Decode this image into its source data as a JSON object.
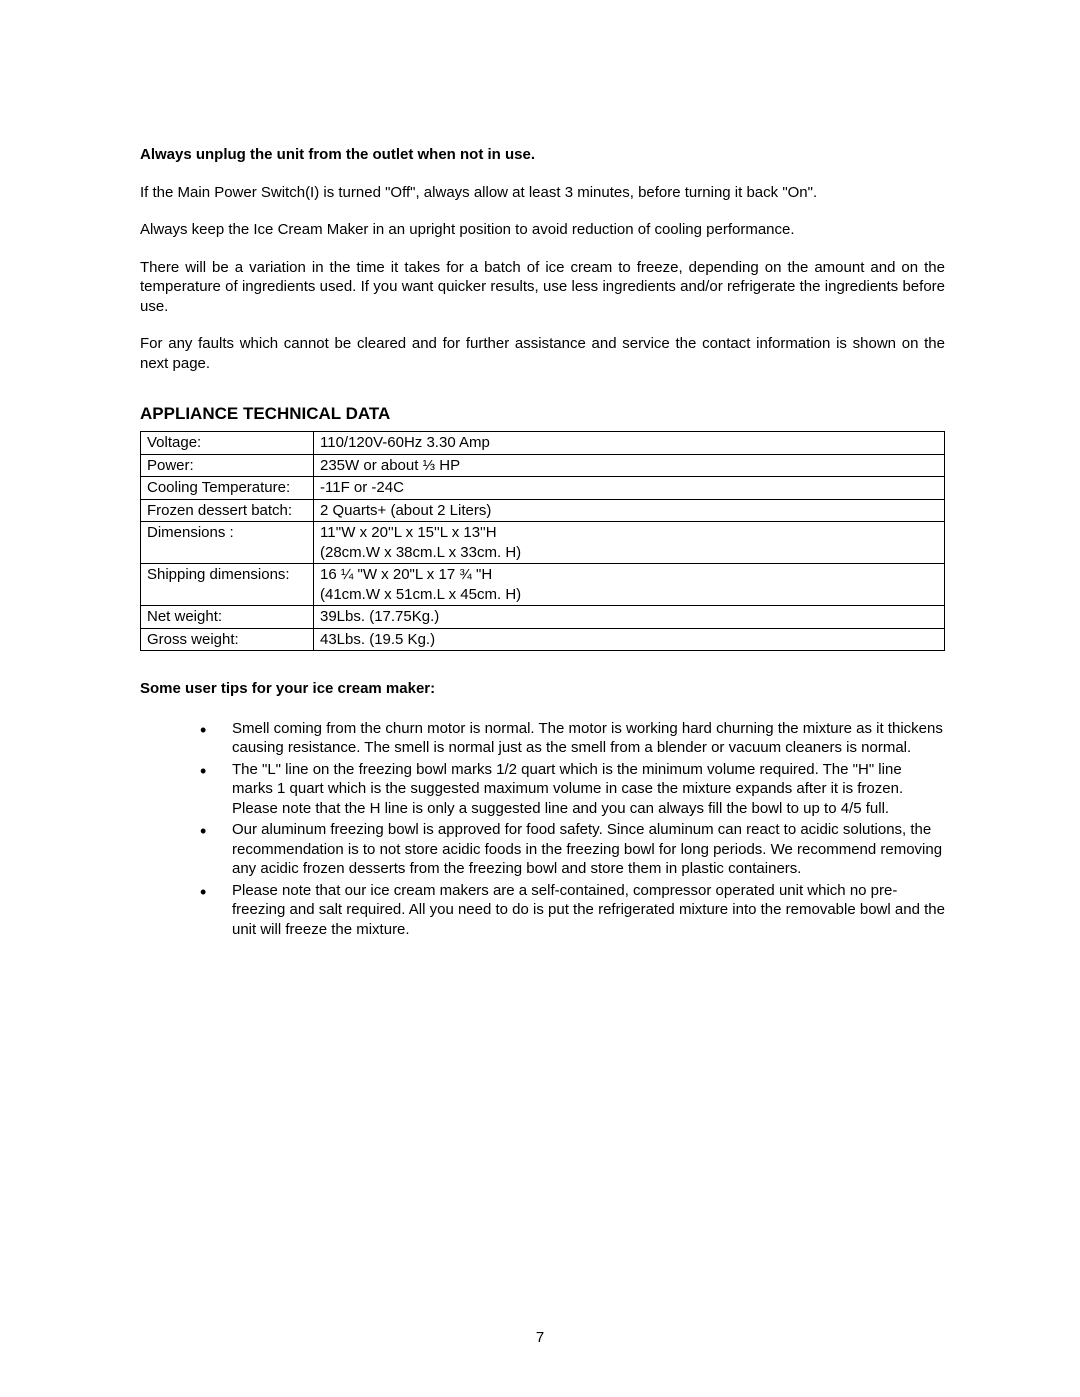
{
  "intro": {
    "heading": "Always unplug the unit from the outlet when not in use.",
    "para1": "If the Main Power Switch(I) is turned \"Off\", always allow at least 3 minutes, before turning it back \"On\".",
    "para2": "Always keep the Ice Cream Maker in an upright position to avoid reduction of cooling performance.",
    "para3": "There will be a variation in the time it takes for a batch of ice cream to freeze, depending on the amount and on the temperature of ingredients used.  If you want quicker results, use less ingredients and/or refrigerate the ingredients before use.",
    "para4": "For any faults which cannot be cleared and for further assistance and service the contact information is shown on the next page."
  },
  "tech": {
    "heading": "APPLIANCE TECHNICAL DATA",
    "rows": [
      {
        "label": "Voltage:",
        "value": "110/120V-60Hz 3.30 Amp"
      },
      {
        "label": "Power:",
        "value": "235W or about ⅓ HP"
      },
      {
        "label": "Cooling Temperature:",
        "value": "-11F or -24C"
      },
      {
        "label": "Frozen dessert batch:",
        "value": "2 Quarts+ (about 2 Liters)"
      },
      {
        "label": "Dimensions :",
        "value": "11''W x 20''L x 15''L x 13''H\n(28cm.W x 38cm.L x 33cm. H)"
      },
      {
        "label": "Shipping dimensions:",
        "value": "16 ¼ \"W x 20\"L x 17 ¾ \"H\n(41cm.W x 51cm.L x 45cm. H)"
      },
      {
        "label": "Net weight:",
        "value": "39Lbs. (17.75Kg.)"
      },
      {
        "label": "Gross weight:",
        "value": "43Lbs. (19.5 Kg.)"
      }
    ]
  },
  "tips": {
    "heading": "Some user tips for your ice cream maker:",
    "items": [
      "Smell coming from the churn motor is normal. The motor is working hard churning the mixture as it thickens causing resistance. The smell is normal just as the smell from a blender or vacuum cleaners is normal.",
      "The \"L\" line on the freezing bowl marks 1/2 quart which is the minimum volume required. The \"H\" line marks 1 quart which is the suggested maximum volume in case the mixture expands after it is frozen. Please note that the H line is only a suggested line and you can always fill the bowl to up to 4/5 full.",
      "Our aluminum freezing bowl is approved for food safety. Since aluminum can react to acidic solutions, the recommendation is to not store acidic foods in the freezing bowl for long periods. We recommend removing any acidic frozen desserts from the freezing bowl and store them in plastic containers.",
      "Please note that our ice cream makers are a self-contained, compressor operated unit which no pre-freezing and salt required. All you need to do is put the refrigerated mixture into the removable bowl and the unit will freeze the mixture."
    ]
  },
  "page_number": "7"
}
